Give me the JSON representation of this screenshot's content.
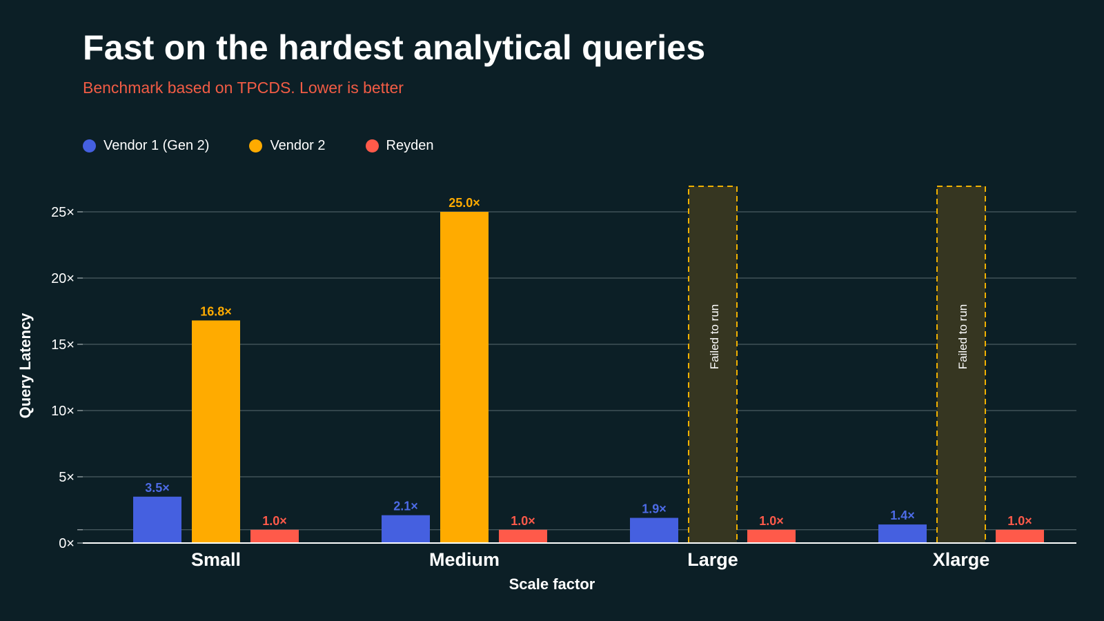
{
  "title": "Fast on the hardest analytical queries",
  "subtitle": "Benchmark based on TPCDS. Lower is better",
  "colors": {
    "background": "#0c1f26",
    "subtitle": "#f25c45",
    "failed_border": "#f2b200",
    "failed_fill": "#363621"
  },
  "legend": [
    {
      "label": "Vendor 1 (Gen 2)",
      "color": "#4560e0"
    },
    {
      "label": "Vendor 2",
      "color": "#ffab00"
    },
    {
      "label": "Reyden",
      "color": "#ff5a4a"
    }
  ],
  "chart_data": {
    "type": "bar",
    "xlabel": "Scale factor",
    "ylabel": "Query Latency",
    "ylim": [
      0,
      25
    ],
    "yticks": [
      "0×",
      "5×",
      "10×",
      "15×",
      "20×",
      "25×"
    ],
    "grid": true,
    "legend_position": "top-left",
    "categories": [
      "Small",
      "Medium",
      "Large",
      "Xlarge"
    ],
    "series": [
      {
        "name": "Vendor 1 (Gen 2)",
        "color": "#4560e0",
        "label_color": "#4d6be6",
        "values": [
          3.5,
          2.1,
          1.9,
          1.4
        ],
        "labels": [
          "3.5×",
          "2.1×",
          "1.9×",
          "1.4×"
        ]
      },
      {
        "name": "Vendor 2",
        "color": "#ffab00",
        "label_color": "#ffab00",
        "values": [
          16.8,
          25.0,
          null,
          null
        ],
        "labels": [
          "16.8×",
          "25.0×",
          "",
          ""
        ],
        "failed_label": "Failed to run"
      },
      {
        "name": "Reyden",
        "color": "#ff5a4a",
        "label_color": "#ff5a4a",
        "values": [
          1.0,
          1.0,
          1.0,
          1.0
        ],
        "labels": [
          "1.0×",
          "1.0×",
          "1.0×",
          "1.0×"
        ]
      }
    ]
  }
}
